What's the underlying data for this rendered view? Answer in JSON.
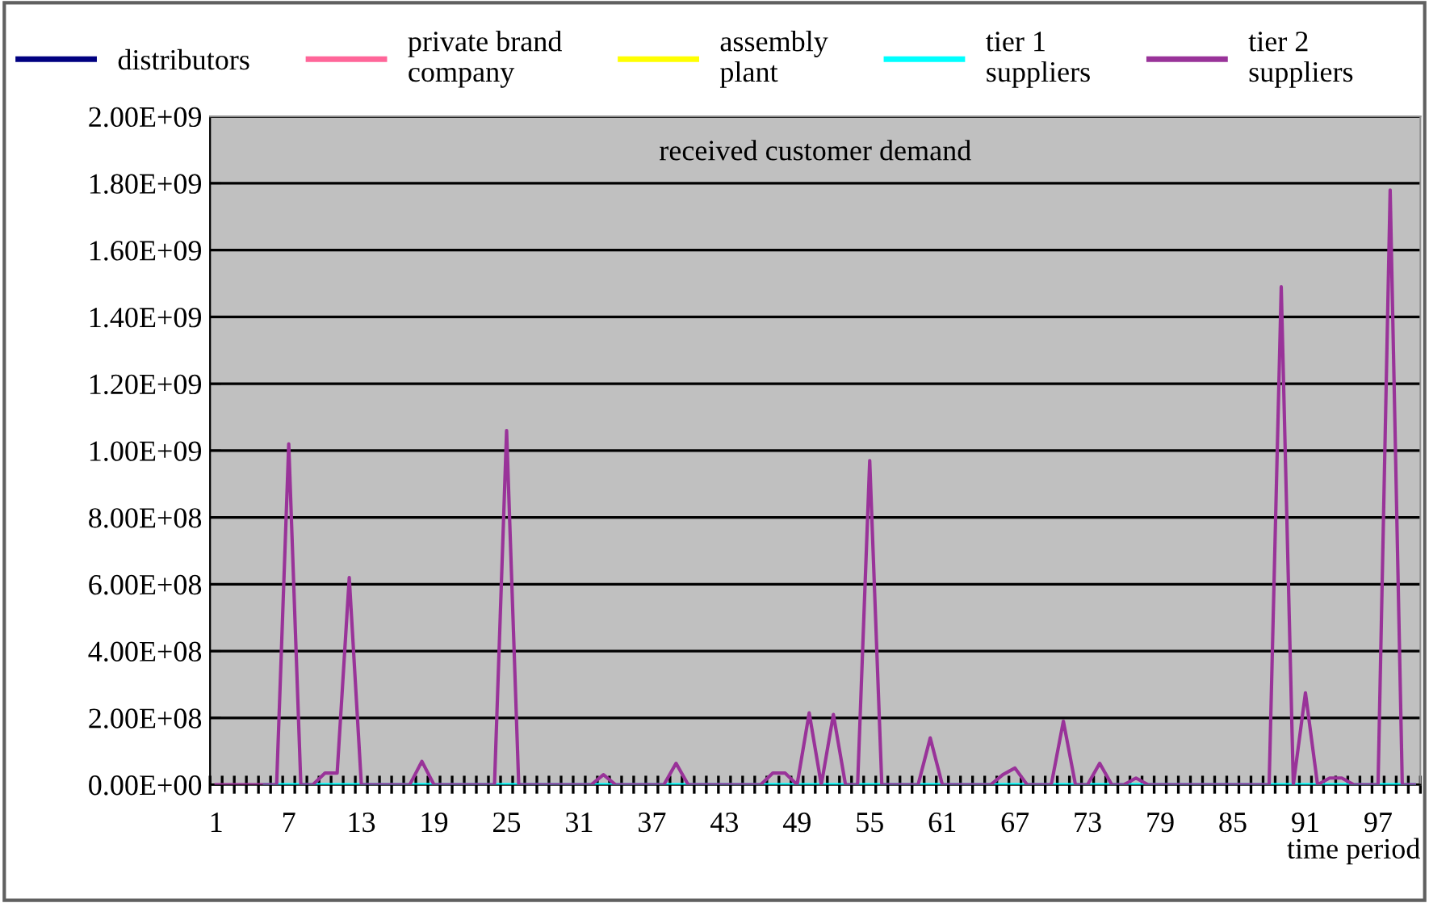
{
  "chart_data": {
    "type": "line",
    "title": "received customer demand",
    "xlabel": "time period",
    "categories": [
      "1",
      null,
      null,
      null,
      null,
      null,
      "7",
      null,
      null,
      null,
      null,
      null,
      "13",
      null,
      null,
      null,
      null,
      null,
      "19",
      null,
      null,
      null,
      null,
      null,
      "25",
      null,
      null,
      null,
      null,
      null,
      "31",
      null,
      null,
      null,
      null,
      null,
      "37",
      null,
      null,
      null,
      null,
      null,
      "43",
      null,
      null,
      null,
      null,
      null,
      "49",
      null,
      null,
      null,
      null,
      null,
      "55",
      null,
      null,
      null,
      null,
      null,
      "61",
      null,
      null,
      null,
      null,
      null,
      "67",
      null,
      null,
      null,
      null,
      null,
      "73",
      null,
      null,
      null,
      null,
      null,
      "79",
      null,
      null,
      null,
      null,
      null,
      "85",
      null,
      null,
      null,
      null,
      null,
      "91",
      null,
      null,
      null,
      null,
      null,
      "97",
      null,
      null,
      null
    ],
    "series": [
      {
        "name": "distributors",
        "color": "#000080",
        "values": [
          null,
          null,
          null,
          null,
          null,
          null,
          null,
          null,
          null,
          null,
          null,
          null,
          null,
          null,
          null,
          null,
          null,
          null,
          null,
          null,
          null,
          null,
          null,
          null,
          null,
          null,
          null,
          null,
          null,
          null,
          null,
          null,
          null,
          null,
          null,
          null,
          null,
          null,
          null,
          null,
          null,
          null,
          null,
          null,
          null,
          null,
          null,
          null,
          null,
          null,
          null,
          null,
          null,
          null,
          null,
          null,
          null,
          null,
          null,
          null,
          null,
          null,
          null,
          null,
          null,
          null,
          null,
          null,
          null,
          null,
          null,
          null,
          null,
          null,
          null,
          null,
          null,
          null,
          null,
          null,
          null,
          null,
          null,
          null,
          null,
          null,
          null,
          null,
          null,
          null,
          null,
          null,
          null,
          null,
          null,
          null,
          null,
          null,
          null,
          null
        ]
      },
      {
        "name": "private brand\ncompany",
        "color": "#ff6699",
        "values": [
          null,
          null,
          null,
          null,
          null,
          null,
          null,
          null,
          null,
          null,
          null,
          null,
          null,
          null,
          null,
          null,
          null,
          null,
          null,
          null,
          null,
          null,
          null,
          null,
          null,
          null,
          null,
          null,
          null,
          null,
          null,
          null,
          null,
          null,
          null,
          null,
          null,
          null,
          null,
          null,
          null,
          null,
          null,
          null,
          null,
          null,
          null,
          null,
          null,
          null,
          null,
          null,
          null,
          null,
          null,
          null,
          null,
          null,
          null,
          null,
          null,
          null,
          null,
          null,
          null,
          null,
          null,
          null,
          null,
          null,
          null,
          null,
          null,
          null,
          null,
          null,
          null,
          null,
          null,
          null,
          null,
          null,
          null,
          null,
          null,
          null,
          null,
          null,
          null,
          null,
          null,
          null,
          null,
          null,
          null,
          null,
          null,
          null,
          null,
          null
        ]
      },
      {
        "name": "assembly\nplant",
        "color": "#ffff00",
        "values": [
          null,
          null,
          null,
          null,
          null,
          null,
          null,
          null,
          null,
          null,
          null,
          null,
          null,
          null,
          null,
          null,
          null,
          null,
          null,
          null,
          null,
          null,
          null,
          null,
          null,
          null,
          null,
          null,
          null,
          null,
          null,
          null,
          null,
          null,
          null,
          null,
          null,
          null,
          null,
          null,
          null,
          null,
          null,
          null,
          null,
          null,
          null,
          null,
          null,
          null,
          null,
          null,
          null,
          null,
          null,
          null,
          null,
          null,
          null,
          null,
          null,
          null,
          null,
          null,
          null,
          null,
          null,
          null,
          null,
          null,
          null,
          null,
          null,
          null,
          null,
          null,
          null,
          null,
          null,
          null,
          null,
          null,
          null,
          null,
          null,
          null,
          null,
          null,
          null,
          null,
          null,
          null,
          null,
          null,
          null,
          null,
          null,
          null,
          null,
          null
        ]
      },
      {
        "name": "tier 1\nsuppliers",
        "color": "#00ffff",
        "values": [
          null,
          null,
          null,
          null,
          0,
          0,
          0,
          0,
          0,
          0,
          0,
          0,
          0,
          0,
          0,
          0,
          0,
          0,
          0,
          0,
          0,
          0,
          0,
          0,
          0,
          0,
          0,
          0,
          0,
          0,
          0,
          0,
          0,
          0,
          0,
          0,
          0,
          0,
          0,
          0,
          0,
          0,
          0,
          0,
          0,
          0,
          0,
          0,
          0,
          0,
          0,
          0,
          0,
          0,
          0,
          0,
          0,
          0,
          0,
          0,
          0,
          0,
          0,
          0,
          0,
          0,
          0,
          0,
          0,
          0,
          0,
          0,
          0,
          0,
          0,
          0,
          0,
          0,
          0,
          0,
          0,
          0,
          0,
          0,
          0,
          0,
          0,
          0,
          0,
          0,
          0,
          0,
          0,
          0,
          0,
          0,
          0,
          0,
          0,
          0
        ]
      },
      {
        "name": "tier 2\nsuppliers",
        "color": "#993399",
        "values": [
          0,
          0,
          0,
          0,
          0,
          0,
          1020000000.0,
          0,
          0,
          35000000.0,
          35000000.0,
          620000000.0,
          0,
          0,
          0,
          0,
          0,
          70000000.0,
          0,
          0,
          0,
          0,
          0,
          0,
          1060000000.0,
          0,
          0,
          0,
          0,
          0,
          0,
          0,
          30000000.0,
          0,
          0,
          0,
          0,
          0,
          64000000.0,
          0,
          0,
          0,
          0,
          0,
          0,
          0,
          35000000.0,
          35000000.0,
          0,
          215000000.0,
          0,
          210000000.0,
          0,
          0,
          970000000.0,
          0,
          0,
          0,
          0,
          140000000.0,
          0,
          0,
          0,
          0,
          0,
          30000000.0,
          50000000.0,
          0,
          0,
          0,
          190000000.0,
          0,
          0,
          64000000.0,
          0,
          0,
          20000000.0,
          0,
          0,
          0,
          0,
          0,
          0,
          0,
          0,
          0,
          0,
          0,
          1490000000.0,
          0,
          275000000.0,
          0,
          20000000.0,
          20000000.0,
          0,
          0,
          0,
          1780000000.0,
          0,
          0
        ]
      }
    ],
    "ylim": [
      0,
      2000000000.0
    ],
    "yticks": [
      {
        "value": 0,
        "label": "0.00E+00"
      },
      {
        "value": 200000000.0,
        "label": "2.00E+08"
      },
      {
        "value": 400000000.0,
        "label": "4.00E+08"
      },
      {
        "value": 600000000.0,
        "label": "6.00E+08"
      },
      {
        "value": 800000000.0,
        "label": "8.00E+08"
      },
      {
        "value": 1000000000.0,
        "label": "1.00E+09"
      },
      {
        "value": 1200000000.0,
        "label": "1.20E+09"
      },
      {
        "value": 1400000000.0,
        "label": "1.40E+09"
      },
      {
        "value": 1600000000.0,
        "label": "1.60E+09"
      },
      {
        "value": 1800000000.0,
        "label": "1.80E+09"
      },
      {
        "value": 2000000000.0,
        "label": "2.00E+09"
      }
    ],
    "grid": "y",
    "legend": "top",
    "marker": "none",
    "line_style": "solid"
  }
}
